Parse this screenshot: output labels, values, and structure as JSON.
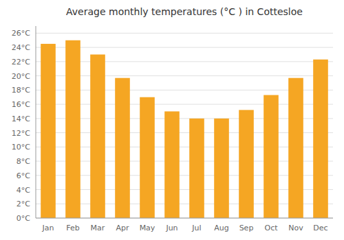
{
  "chart_data": {
    "type": "bar",
    "title": "Average monthly temperatures (°C ) in Cottesloe",
    "categories": [
      "Jan",
      "Feb",
      "Mar",
      "Apr",
      "May",
      "Jun",
      "Jul",
      "Aug",
      "Sep",
      "Oct",
      "Nov",
      "Dec"
    ],
    "values": [
      24.5,
      25.0,
      23.0,
      19.7,
      17.0,
      15.0,
      14.0,
      14.0,
      15.2,
      17.3,
      19.7,
      22.3
    ],
    "color": "#F5A623",
    "ylim": [
      0,
      27
    ],
    "yticks": [
      {
        "value": 0,
        "label": "0°C"
      },
      {
        "value": 2,
        "label": "2°C"
      },
      {
        "value": 4,
        "label": "4°C"
      },
      {
        "value": 6,
        "label": "6°C"
      },
      {
        "value": 8,
        "label": "8°C"
      },
      {
        "value": 10,
        "label": "10°C"
      },
      {
        "value": 12,
        "label": "12°C"
      },
      {
        "value": 14,
        "label": "14°C"
      },
      {
        "value": 16,
        "label": "16°C"
      },
      {
        "value": 18,
        "label": "18°C"
      },
      {
        "value": 20,
        "label": "20°C"
      },
      {
        "value": 22,
        "label": "22°C"
      },
      {
        "value": 24,
        "label": "24°C"
      },
      {
        "value": 26,
        "label": "26°C"
      }
    ],
    "grid": true
  }
}
